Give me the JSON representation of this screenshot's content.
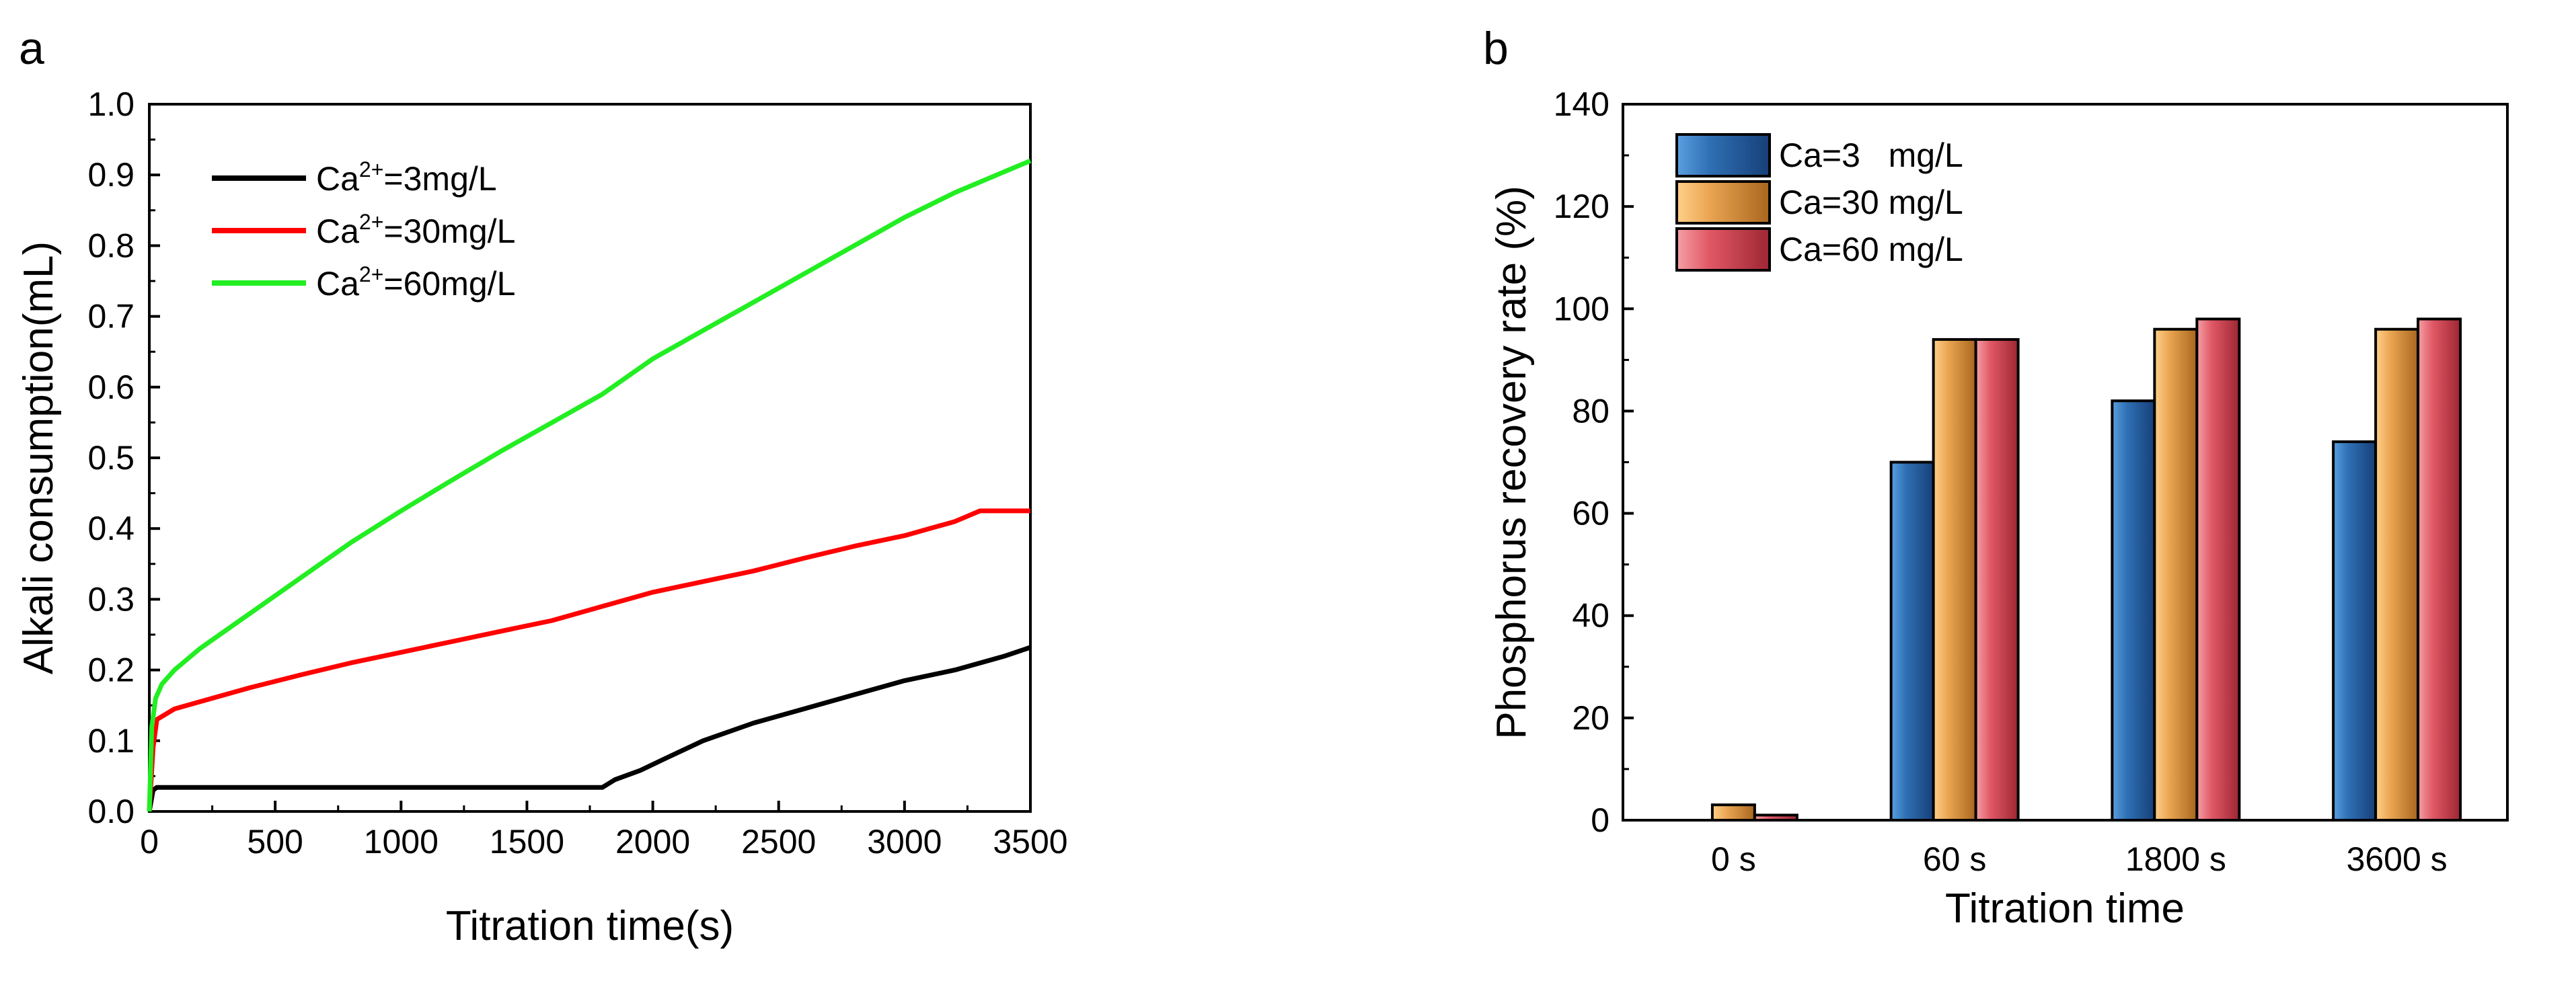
{
  "figure": {
    "panels": [
      "a",
      "b"
    ]
  },
  "chart_data": [
    {
      "panel": "a",
      "type": "line",
      "title": "",
      "xlabel": "Titration time(s)",
      "ylabel": "Alkali consumption(mL)",
      "xlim": [
        0,
        3500
      ],
      "ylim": [
        0,
        1.0
      ],
      "xticks": [
        0,
        500,
        1000,
        1500,
        2000,
        2500,
        3000,
        3500
      ],
      "yticks": [
        0.0,
        0.1,
        0.2,
        0.3,
        0.4,
        0.5,
        0.6,
        0.7,
        0.8,
        0.9,
        1.0
      ],
      "ytick_labels": [
        "0.0",
        "0.1",
        "0.2",
        "0.3",
        "0.4",
        "0.5",
        "0.6",
        "0.7",
        "0.8",
        "0.9",
        "1.0"
      ],
      "legend_position": "top-left",
      "series": [
        {
          "name": "Ca2+=3mg/L",
          "label_base": "Ca",
          "label_sup": "2+",
          "label_rest": "=3mg/L",
          "color": "#000000",
          "x": [
            0,
            15,
            30,
            1800,
            1850,
            1950,
            2050,
            2200,
            2400,
            2600,
            2800,
            3000,
            3200,
            3400,
            3500
          ],
          "y": [
            0,
            0.03,
            0.034,
            0.034,
            0.045,
            0.058,
            0.075,
            0.1,
            0.125,
            0.145,
            0.165,
            0.185,
            0.2,
            0.22,
            0.232
          ]
        },
        {
          "name": "Ca2+=30mg/L",
          "label_base": "Ca",
          "label_sup": "2+",
          "label_rest": "=30mg/L",
          "color": "#ff0000",
          "x": [
            0,
            15,
            30,
            100,
            200,
            400,
            600,
            800,
            1000,
            1200,
            1400,
            1600,
            1800,
            2000,
            2200,
            2400,
            2600,
            2800,
            3000,
            3200,
            3300,
            3500
          ],
          "y": [
            0,
            0.09,
            0.13,
            0.145,
            0.155,
            0.175,
            0.193,
            0.21,
            0.225,
            0.24,
            0.255,
            0.27,
            0.29,
            0.31,
            0.325,
            0.34,
            0.358,
            0.375,
            0.39,
            0.41,
            0.425,
            0.425
          ]
        },
        {
          "name": "Ca2+=60mg/L",
          "label_base": "Ca",
          "label_sup": "2+",
          "label_rest": "=60mg/L",
          "color": "#22ee22",
          "x": [
            0,
            10,
            25,
            50,
            100,
            200,
            400,
            600,
            800,
            1000,
            1200,
            1400,
            1600,
            1800,
            2000,
            2200,
            2400,
            2600,
            2800,
            3000,
            3200,
            3400,
            3500
          ],
          "y": [
            0,
            0.12,
            0.16,
            0.18,
            0.2,
            0.23,
            0.28,
            0.33,
            0.38,
            0.425,
            0.468,
            0.51,
            0.55,
            0.59,
            0.64,
            0.68,
            0.72,
            0.76,
            0.8,
            0.84,
            0.875,
            0.905,
            0.92
          ]
        }
      ]
    },
    {
      "panel": "b",
      "type": "bar",
      "title": "",
      "xlabel": "Titration time",
      "ylabel": "Phosphorus recovery rate (%)",
      "ylim": [
        0,
        140
      ],
      "yticks": [
        0,
        20,
        40,
        60,
        80,
        100,
        120,
        140
      ],
      "categories": [
        "0 s",
        "60 s",
        "1800 s",
        "3600 s"
      ],
      "legend_position": "top-left",
      "series": [
        {
          "name": "Ca=3   mg/L",
          "color": "#2e6db0",
          "values": [
            0,
            70,
            82,
            74
          ]
        },
        {
          "name": "Ca=30 mg/L",
          "color": "#e8a550",
          "values": [
            3,
            94,
            96,
            96
          ]
        },
        {
          "name": "Ca=60 mg/L",
          "color": "#d8404f",
          "values": [
            1,
            94,
            98,
            98
          ]
        }
      ]
    }
  ]
}
